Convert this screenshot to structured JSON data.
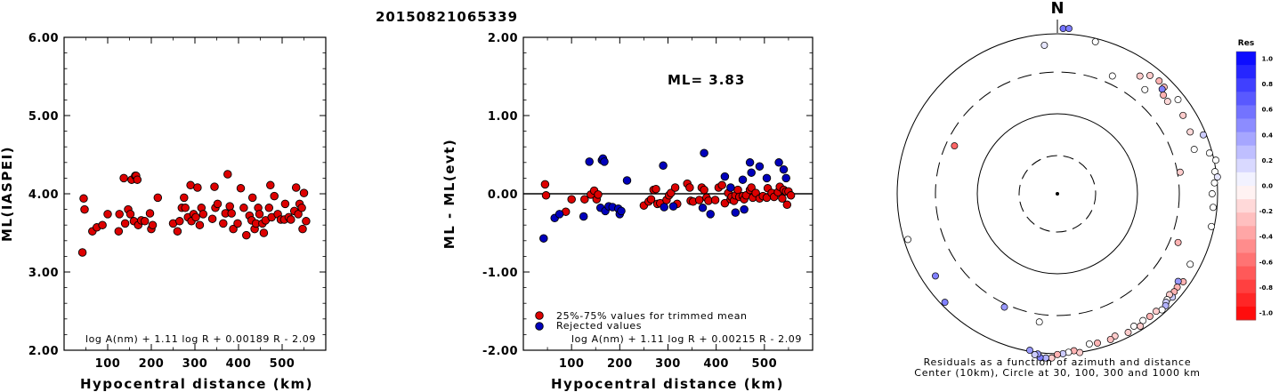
{
  "title": "20150821065339",
  "panels": [
    {
      "id": "ml",
      "ylabel": "ML(IASPEI)",
      "xlabel": "Hypocentral distance (km)",
      "formula": "log A(nm) + 1.11 log R + 0.00189 R - 2.09",
      "xticks": [
        "100",
        "200",
        "300",
        "400",
        "500"
      ],
      "yticks": [
        "2.00",
        "3.00",
        "4.00",
        "5.00",
        "6.00"
      ]
    },
    {
      "id": "residual",
      "ylabel": "ML - ML(evt)",
      "xlabel": "Hypocentral distance (km)",
      "formula": "log A(nm) + 1.11 log R + 0.00215 R - 2.09",
      "ml_label": "ML= 3.83",
      "legend": [
        "25%-75% values for trimmed mean",
        "Rejected values"
      ],
      "xticks": [
        "100",
        "200",
        "300",
        "400",
        "500"
      ],
      "yticks": [
        "-2.00",
        "-1.00",
        "0.00",
        "1.00",
        "2.00"
      ]
    }
  ],
  "polar": {
    "north_label": "N",
    "caption_line1": "Residuals as a function of azimuth and distance",
    "caption_line2": "Center (10km), Circle at 30, 100, 300 and 1000 km"
  },
  "colorbar": {
    "title": "Res",
    "ticks": [
      "1.0",
      "0.8",
      "0.6",
      "0.4",
      "0.2",
      "0.0",
      "-0.2",
      "-0.4",
      "-0.6",
      "-0.8",
      "-1.0"
    ]
  },
  "colors": {
    "trimmed": "#dd0000",
    "rejected": "#0000bb",
    "positive_max": "#0000ff",
    "negative_max": "#ff0000"
  },
  "chart_data": [
    {
      "type": "scatter",
      "title": "20150821065339",
      "xlabel": "Hypocentral distance (km)",
      "ylabel": "ML(IASPEI)",
      "xlim": [
        0,
        600
      ],
      "ylim": [
        2.0,
        6.0
      ],
      "points": [
        [
          42,
          3.25
        ],
        [
          45,
          3.94
        ],
        [
          47,
          3.8
        ],
        [
          65,
          3.52
        ],
        [
          75,
          3.57
        ],
        [
          88,
          3.6
        ],
        [
          100,
          3.74
        ],
        [
          125,
          3.52
        ],
        [
          127,
          3.74
        ],
        [
          137,
          4.2
        ],
        [
          140,
          3.62
        ],
        [
          147,
          3.8
        ],
        [
          152,
          3.74
        ],
        [
          155,
          4.18
        ],
        [
          160,
          3.65
        ],
        [
          163,
          4.23
        ],
        [
          165,
          4.23
        ],
        [
          168,
          4.18
        ],
        [
          170,
          3.6
        ],
        [
          177,
          3.66
        ],
        [
          185,
          3.65
        ],
        [
          197,
          3.75
        ],
        [
          200,
          3.55
        ],
        [
          203,
          3.6
        ],
        [
          215,
          3.95
        ],
        [
          250,
          3.62
        ],
        [
          260,
          3.52
        ],
        [
          265,
          3.65
        ],
        [
          270,
          3.82
        ],
        [
          275,
          3.95
        ],
        [
          278,
          3.82
        ],
        [
          284,
          3.7
        ],
        [
          290,
          4.11
        ],
        [
          292,
          3.65
        ],
        [
          297,
          3.74
        ],
        [
          302,
          3.7
        ],
        [
          306,
          4.08
        ],
        [
          311,
          3.6
        ],
        [
          315,
          3.82
        ],
        [
          319,
          3.74
        ],
        [
          340,
          3.68
        ],
        [
          345,
          4.09
        ],
        [
          347,
          3.82
        ],
        [
          352,
          3.87
        ],
        [
          365,
          3.62
        ],
        [
          370,
          3.75
        ],
        [
          375,
          4.25
        ],
        [
          380,
          3.84
        ],
        [
          384,
          3.75
        ],
        [
          388,
          3.55
        ],
        [
          398,
          3.62
        ],
        [
          405,
          4.07
        ],
        [
          412,
          3.82
        ],
        [
          418,
          3.47
        ],
        [
          425,
          3.72
        ],
        [
          430,
          3.66
        ],
        [
          432,
          3.95
        ],
        [
          437,
          3.55
        ],
        [
          440,
          3.62
        ],
        [
          445,
          3.82
        ],
        [
          448,
          3.74
        ],
        [
          455,
          3.62
        ],
        [
          458,
          3.5
        ],
        [
          462,
          3.66
        ],
        [
          470,
          3.82
        ],
        [
          473,
          4.11
        ],
        [
          476,
          3.7
        ],
        [
          482,
          3.97
        ],
        [
          490,
          3.74
        ],
        [
          497,
          3.67
        ],
        [
          505,
          3.67
        ],
        [
          507,
          3.87
        ],
        [
          515,
          3.7
        ],
        [
          520,
          3.67
        ],
        [
          528,
          3.78
        ],
        [
          532,
          4.08
        ],
        [
          537,
          3.74
        ],
        [
          540,
          3.87
        ],
        [
          545,
          3.82
        ],
        [
          547,
          3.55
        ],
        [
          550,
          4.01
        ],
        [
          555,
          3.65
        ]
      ]
    },
    {
      "type": "scatter",
      "xlabel": "Hypocentral distance (km)",
      "ylabel": "ML - ML(evt)",
      "xlim": [
        0,
        600
      ],
      "ylim": [
        -2.0,
        2.0
      ],
      "hline": 0.0,
      "series": [
        {
          "name": "25%-75% values for trimmed mean",
          "points": [
            [
              45,
              0.12
            ],
            [
              47,
              -0.02
            ],
            [
              88,
              -0.23
            ],
            [
              100,
              -0.07
            ],
            [
              127,
              -0.07
            ],
            [
              140,
              -0.01
            ],
            [
              147,
              0.04
            ],
            [
              152,
              -0.07
            ],
            [
              155,
              -0.01
            ],
            [
              250,
              -0.15
            ],
            [
              260,
              -0.1
            ],
            [
              265,
              -0.07
            ],
            [
              270,
              0.05
            ],
            [
              275,
              0.06
            ],
            [
              278,
              -0.13
            ],
            [
              284,
              -0.12
            ],
            [
              297,
              -0.08
            ],
            [
              302,
              -0.02
            ],
            [
              306,
              0.01
            ],
            [
              315,
              0.08
            ],
            [
              319,
              -0.13
            ],
            [
              340,
              0.13
            ],
            [
              345,
              0.08
            ],
            [
              347,
              -0.09
            ],
            [
              352,
              -0.1
            ],
            [
              365,
              -0.08
            ],
            [
              370,
              0.08
            ],
            [
              375,
              0.05
            ],
            [
              380,
              -0.05
            ],
            [
              384,
              -0.09
            ],
            [
              398,
              -0.08
            ],
            [
              405,
              0.08
            ],
            [
              412,
              0.11
            ],
            [
              418,
              -0.12
            ],
            [
              425,
              0.01
            ],
            [
              430,
              -0.07
            ],
            [
              432,
              -0.04
            ],
            [
              437,
              -0.09
            ],
            [
              440,
              -0.02
            ],
            [
              445,
              0.05
            ],
            [
              448,
              -0.04
            ],
            [
              455,
              -0.03
            ],
            [
              458,
              -0.07
            ],
            [
              462,
              -0.02
            ],
            [
              470,
              0.05
            ],
            [
              473,
              0.08
            ],
            [
              476,
              -0.05
            ],
            [
              482,
              0.01
            ],
            [
              490,
              -0.06
            ],
            [
              497,
              -0.03
            ],
            [
              505,
              -0.05
            ],
            [
              507,
              0.07
            ],
            [
              515,
              0.01
            ],
            [
              520,
              -0.04
            ],
            [
              528,
              0.02
            ],
            [
              532,
              0.09
            ],
            [
              537,
              -0.06
            ],
            [
              540,
              0.05
            ],
            [
              545,
              0.03
            ],
            [
              547,
              -0.14
            ],
            [
              550,
              0.03
            ],
            [
              555,
              -0.02
            ]
          ]
        },
        {
          "name": "Rejected values",
          "points": [
            [
              42,
              -0.57
            ],
            [
              65,
              -0.31
            ],
            [
              75,
              -0.26
            ],
            [
              125,
              -0.29
            ],
            [
              137,
              0.41
            ],
            [
              160,
              -0.18
            ],
            [
              163,
              0.43
            ],
            [
              165,
              0.45
            ],
            [
              168,
              0.41
            ],
            [
              170,
              -0.22
            ],
            [
              177,
              -0.16
            ],
            [
              185,
              -0.17
            ],
            [
              197,
              -0.19
            ],
            [
              200,
              -0.26
            ],
            [
              203,
              -0.22
            ],
            [
              215,
              0.17
            ],
            [
              290,
              0.36
            ],
            [
              292,
              -0.17
            ],
            [
              311,
              -0.16
            ],
            [
              372,
              -0.18
            ],
            [
              375,
              0.52
            ],
            [
              388,
              -0.26
            ],
            [
              418,
              0.22
            ],
            [
              430,
              0.08
            ],
            [
              440,
              -0.24
            ],
            [
              455,
              0.18
            ],
            [
              458,
              -0.2
            ],
            [
              470,
              0.4
            ],
            [
              473,
              0.27
            ],
            [
              490,
              0.35
            ],
            [
              505,
              0.2
            ],
            [
              530,
              0.4
            ],
            [
              540,
              0.31
            ],
            [
              545,
              0.2
            ]
          ]
        }
      ]
    },
    {
      "type": "scatter",
      "coordinate_system": "polar",
      "rings_km": [
        30,
        100,
        300,
        1000
      ],
      "center_km": 10,
      "color_range": [
        -1.0,
        1.0
      ],
      "points": [
        {
          "azimuth": 355,
          "distance_km": 800,
          "res": 0.1
        },
        {
          "azimuth": 2,
          "distance_km": 1150,
          "res": 0.55
        },
        {
          "azimuth": 4,
          "distance_km": 1160,
          "res": 0.5
        },
        {
          "azimuth": 14,
          "distance_km": 940,
          "res": 0.0
        },
        {
          "azimuth": 25,
          "distance_km": 450,
          "res": 0.0
        },
        {
          "azimuth": 35,
          "distance_km": 700,
          "res": -0.2
        },
        {
          "azimuth": 40,
          "distance_km": 560,
          "res": 0.0
        },
        {
          "azimuth": 38,
          "distance_km": 820,
          "res": -0.2
        },
        {
          "azimuth": 42,
          "distance_km": 850,
          "res": -0.3
        },
        {
          "azimuth": 45,
          "distance_km": 830,
          "res": -0.25
        },
        {
          "azimuth": 45,
          "distance_km": 780,
          "res": 0.5
        },
        {
          "azimuth": 47,
          "distance_km": 720,
          "res": -0.3
        },
        {
          "azimuth": 50,
          "distance_km": 700,
          "res": -0.15
        },
        {
          "azimuth": 52,
          "distance_km": 870,
          "res": 0.0
        },
        {
          "azimuth": 58,
          "distance_km": 780,
          "res": -0.2
        },
        {
          "azimuth": 65,
          "distance_km": 750,
          "res": -0.15
        },
        {
          "azimuth": 68,
          "distance_km": 950,
          "res": 0.2
        },
        {
          "azimuth": 72,
          "distance_km": 700,
          "res": 0.0
        },
        {
          "azimuth": 75,
          "distance_km": 950,
          "res": 0.0
        },
        {
          "azimuth": 78,
          "distance_km": 1050,
          "res": 0.0
        },
        {
          "azimuth": 82,
          "distance_km": 980,
          "res": 0.0
        },
        {
          "azimuth": 84,
          "distance_km": 1020,
          "res": 0.1
        },
        {
          "azimuth": 86,
          "distance_km": 950,
          "res": 0.0
        },
        {
          "azimuth": 90,
          "distance_km": 900,
          "res": 0.0
        },
        {
          "azimuth": 95,
          "distance_km": 930,
          "res": 0.0
        },
        {
          "azimuth": 80,
          "distance_km": 350,
          "res": -0.2
        },
        {
          "azimuth": 102,
          "distance_km": 950,
          "res": 0.0
        },
        {
          "azimuth": 112,
          "distance_km": 450,
          "res": -0.3
        },
        {
          "azimuth": 118,
          "distance_km": 820,
          "res": 0.0
        },
        {
          "azimuth": 125,
          "distance_km": 880,
          "res": -0.3
        },
        {
          "azimuth": 126,
          "distance_km": 800,
          "res": 0.4
        },
        {
          "azimuth": 128,
          "distance_km": 850,
          "res": -0.3
        },
        {
          "azimuth": 130,
          "distance_km": 860,
          "res": -0.3
        },
        {
          "azimuth": 132,
          "distance_km": 900,
          "res": 0.2
        },
        {
          "azimuth": 132,
          "distance_km": 830,
          "res": -0.2
        },
        {
          "azimuth": 134,
          "distance_km": 860,
          "res": 0.0
        },
        {
          "azimuth": 135,
          "distance_km": 880,
          "res": 0.2
        },
        {
          "azimuth": 136,
          "distance_km": 920,
          "res": 0.3
        },
        {
          "azimuth": 138,
          "distance_km": 930,
          "res": 0.0
        },
        {
          "azimuth": 140,
          "distance_km": 880,
          "res": -0.2
        },
        {
          "azimuth": 143,
          "distance_km": 880,
          "res": -0.3
        },
        {
          "azimuth": 146,
          "distance_km": 870,
          "res": 0.0
        },
        {
          "azimuth": 148,
          "distance_km": 930,
          "res": -0.2
        },
        {
          "azimuth": 150,
          "distance_km": 870,
          "res": 0.0
        },
        {
          "azimuth": 153,
          "distance_km": 920,
          "res": -0.2
        },
        {
          "azimuth": 158,
          "distance_km": 880,
          "res": -0.2
        },
        {
          "azimuth": 160,
          "distance_km": 910,
          "res": -0.25
        },
        {
          "azimuth": 165,
          "distance_km": 900,
          "res": -0.3
        },
        {
          "azimuth": 168,
          "distance_km": 880,
          "res": 0.0
        },
        {
          "azimuth": 172,
          "distance_km": 1010,
          "res": -0.2
        },
        {
          "azimuth": 174,
          "distance_km": 960,
          "res": -0.3
        },
        {
          "azimuth": 176,
          "distance_km": 980,
          "res": 0.0
        },
        {
          "azimuth": 178,
          "distance_km": 1000,
          "res": 0.2
        },
        {
          "azimuth": 180,
          "distance_km": 1020,
          "res": -0.3
        },
        {
          "azimuth": 182,
          "distance_km": 1120,
          "res": -0.2
        },
        {
          "azimuth": 184,
          "distance_km": 1130,
          "res": 0.3
        },
        {
          "azimuth": 186,
          "distance_km": 1130,
          "res": 0.5
        },
        {
          "azimuth": 187,
          "distance_km": 1040,
          "res": 0.4
        },
        {
          "azimuth": 188,
          "distance_km": 1070,
          "res": 0.2
        },
        {
          "azimuth": 190,
          "distance_km": 980,
          "res": 0.4
        },
        {
          "azimuth": 188,
          "distance_km": 440,
          "res": 0.0
        },
        {
          "azimuth": 205,
          "distance_km": 360,
          "res": 0.4
        },
        {
          "azimuth": 226,
          "distance_km": 930,
          "res": 0.5
        },
        {
          "azimuth": 236,
          "distance_km": 760,
          "res": 0.5
        },
        {
          "azimuth": 253,
          "distance_km": 930,
          "res": 0.0
        },
        {
          "azimuth": 295,
          "distance_km": 260,
          "res": -0.6
        }
      ]
    }
  ]
}
